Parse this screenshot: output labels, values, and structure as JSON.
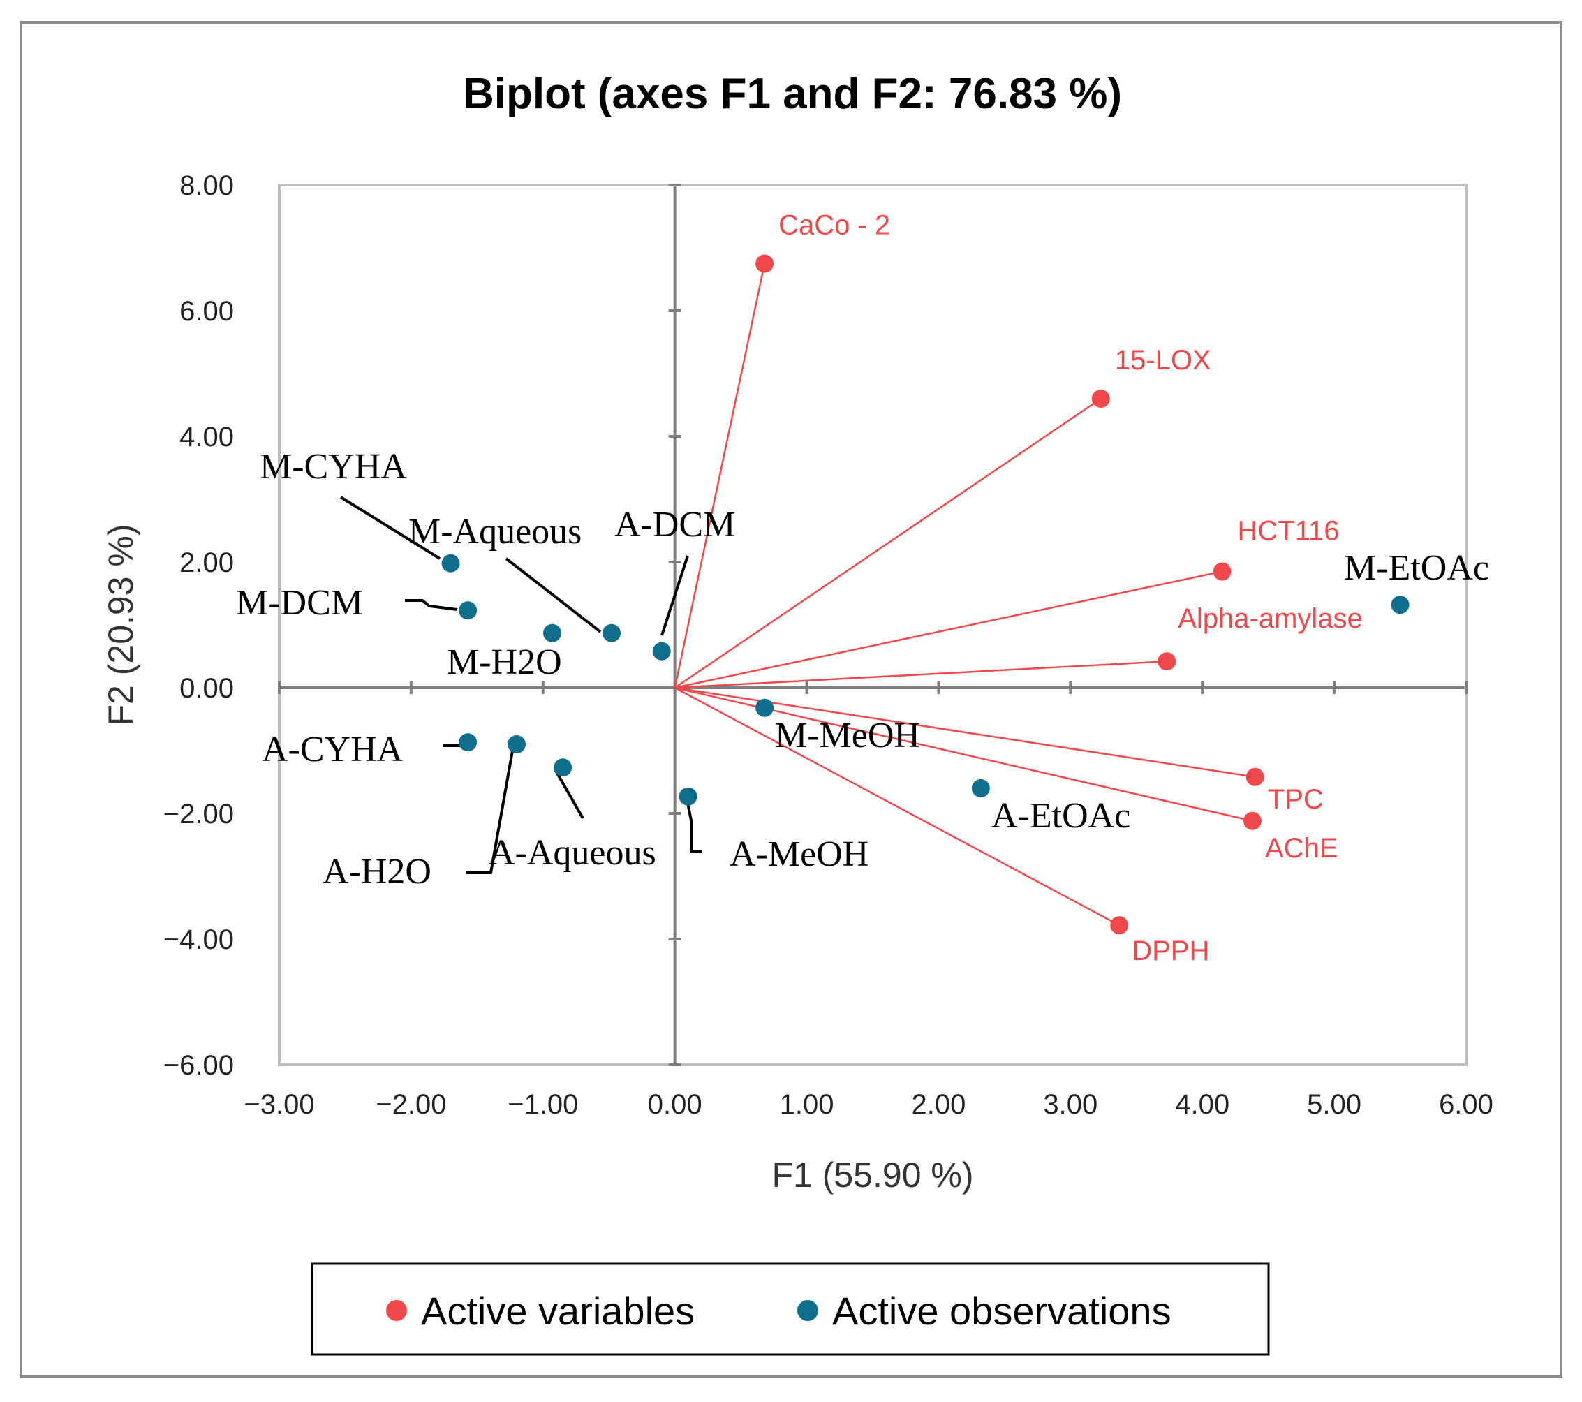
{
  "chart_data": {
    "type": "scatter",
    "title": "Biplot (axes F1 and F2: 76.83 %)",
    "xlabel": "F1 (55.90 %)",
    "ylabel": "F2 (20.93 %)",
    "xlim": [
      -3,
      6
    ],
    "ylim": [
      -6,
      8
    ],
    "xticks": [
      "-3.00",
      "-2.00",
      "-1.00",
      "0.00",
      "1.00",
      "2.00",
      "3.00",
      "4.00",
      "5.00",
      "6.00"
    ],
    "yticks": [
      "-6.00",
      "-4.00",
      "-2.00",
      "0.00",
      "2.00",
      "4.00",
      "6.00",
      "8.00"
    ],
    "legend": [
      {
        "label": "Active variables",
        "color": "#f0484b"
      },
      {
        "label": "Active observations",
        "color": "#0f6e8c"
      }
    ],
    "variables": [
      {
        "name": "CaCo - 2",
        "x": 0.68,
        "y": 6.75
      },
      {
        "name": "15-LOX",
        "x": 3.23,
        "y": 4.6
      },
      {
        "name": "HCT116",
        "x": 4.15,
        "y": 1.85
      },
      {
        "name": "Alpha-amylase",
        "x": 3.73,
        "y": 0.42
      },
      {
        "name": "TPC",
        "x": 4.4,
        "y": -1.42
      },
      {
        "name": "AChE",
        "x": 4.38,
        "y": -2.12
      },
      {
        "name": "DPPH",
        "x": 3.37,
        "y": -3.78
      }
    ],
    "observations": [
      {
        "name": "M-CYHA",
        "x": -1.7,
        "y": 1.98
      },
      {
        "name": "M-DCM",
        "x": -1.57,
        "y": 1.23
      },
      {
        "name": "M-H2O",
        "x": -0.93,
        "y": 0.87
      },
      {
        "name": "M-Aqueous",
        "x": -0.48,
        "y": 0.87
      },
      {
        "name": "A-DCM",
        "x": -0.1,
        "y": 0.58
      },
      {
        "name": "M-EtOAc",
        "x": 5.5,
        "y": 1.32
      },
      {
        "name": "M-MeOH",
        "x": 0.68,
        "y": -0.32
      },
      {
        "name": "A-CYHA",
        "x": -1.57,
        "y": -0.87
      },
      {
        "name": "A-H2O",
        "x": -1.2,
        "y": -0.9
      },
      {
        "name": "A-Aqueous",
        "x": -0.85,
        "y": -1.27
      },
      {
        "name": "A-MeOH",
        "x": 0.1,
        "y": -1.73
      },
      {
        "name": "A-EtOAc",
        "x": 2.32,
        "y": -1.6
      }
    ]
  }
}
